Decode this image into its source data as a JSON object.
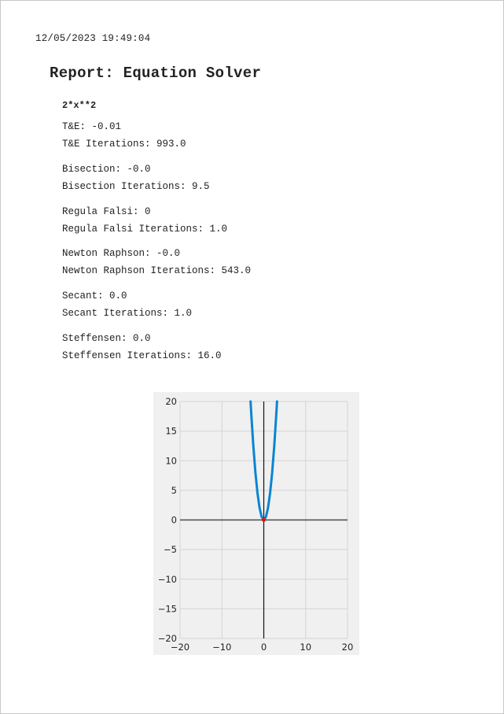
{
  "header": {
    "timestamp": "12/05/2023 19:49:04"
  },
  "report": {
    "title": "Report: Equation Solver",
    "equation": "2*x**2",
    "results": [
      {
        "value_line": "T&E: -0.01",
        "iter_line": "T&E Iterations: 993.0"
      },
      {
        "value_line": "Bisection: -0.0",
        "iter_line": "Bisection Iterations: 9.5"
      },
      {
        "value_line": "Regula Falsi: 0",
        "iter_line": "Regula Falsi Iterations: 1.0"
      },
      {
        "value_line": "Newton Raphson: -0.0",
        "iter_line": "Newton Raphson Iterations: 543.0"
      },
      {
        "value_line": "Secant: 0.0",
        "iter_line": "Secant Iterations: 1.0"
      },
      {
        "value_line": "Steffensen: 0.0",
        "iter_line": "Steffensen Iterations: 16.0"
      }
    ]
  },
  "chart_data": {
    "type": "line",
    "title": "",
    "xlabel": "",
    "ylabel": "",
    "xlim": [
      -20,
      20
    ],
    "ylim": [
      -20,
      20
    ],
    "xticks": [
      -20,
      -10,
      0,
      10,
      20
    ],
    "yticks": [
      -20,
      -15,
      -10,
      -5,
      0,
      5,
      10,
      15,
      20
    ],
    "xtick_labels": [
      "−20",
      "−10",
      "0",
      "10",
      "20"
    ],
    "ytick_labels": [
      "−20",
      "−15",
      "−10",
      "−5",
      "0",
      "5",
      "10",
      "15",
      "20"
    ],
    "grid": true,
    "series": [
      {
        "color": "#0a85d0",
        "x": [
          -3.16,
          -3.0,
          -2.5,
          -2.0,
          -1.5,
          -1.0,
          -0.5,
          0,
          0.5,
          1.0,
          1.5,
          2.0,
          2.5,
          3.0,
          3.16
        ],
        "y": [
          20.0,
          18.0,
          12.5,
          8.0,
          4.5,
          2.0,
          0.5,
          0,
          0.5,
          2.0,
          4.5,
          8.0,
          12.5,
          18.0,
          20.0
        ]
      }
    ],
    "root_marker": {
      "x": 0,
      "y": 0,
      "color": "#e81010"
    }
  }
}
